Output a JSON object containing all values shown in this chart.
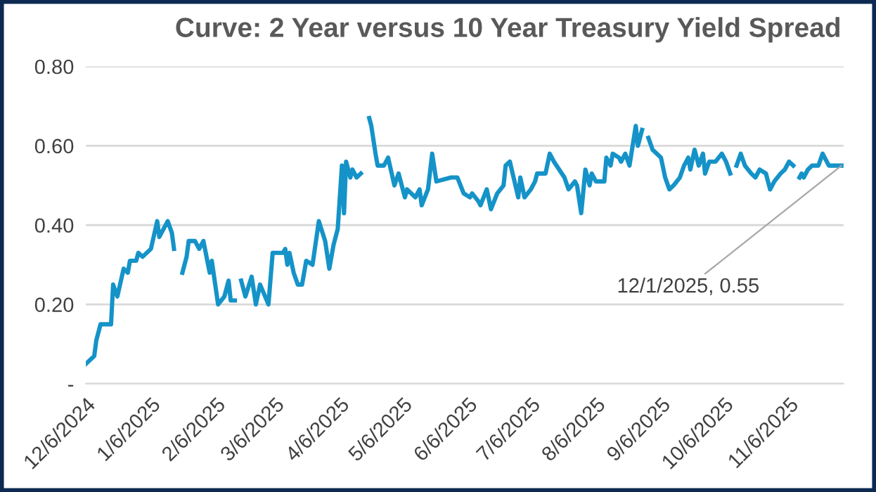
{
  "chart_data": {
    "type": "line",
    "title": "Curve: 2 Year versus 10 Year Treasury Yield Spread",
    "x": [
      "2024-12-06",
      "2024-12-10",
      "2024-12-11",
      "2024-12-13",
      "2024-12-17",
      "2024-12-18",
      "2024-12-19",
      "2024-12-21",
      "2024-12-24",
      "2024-12-26",
      "2024-12-27",
      "2024-12-30",
      "2024-12-31",
      "2025-01-02",
      "2025-01-06",
      "2025-01-09",
      "2025-01-10",
      "2025-01-14",
      "2025-01-16",
      "2025-01-17",
      "2025-01-19",
      "2025-01-21",
      "2025-01-23",
      "2025-01-24",
      "2025-01-27",
      "2025-01-29",
      "2025-01-31",
      "2025-02-03",
      "2025-02-04",
      "2025-02-07",
      "2025-02-10",
      "2025-02-12",
      "2025-02-13",
      "2025-02-15",
      "2025-02-17",
      "2025-02-18",
      "2025-02-20",
      "2025-02-23",
      "2025-02-25",
      "2025-02-27",
      "2025-03-03",
      "2025-03-05",
      "2025-03-10",
      "2025-03-11",
      "2025-03-12",
      "2025-03-13",
      "2025-03-15",
      "2025-03-17",
      "2025-03-19",
      "2025-03-21",
      "2025-03-24",
      "2025-03-27",
      "2025-03-30",
      "2025-04-01",
      "2025-04-03",
      "2025-04-05",
      "2025-04-07",
      "2025-04-08",
      "2025-04-09",
      "2025-04-11",
      "2025-04-12",
      "2025-04-14",
      "2025-04-16",
      "2025-04-19",
      "2025-04-20",
      "2025-04-21",
      "2025-04-23",
      "2025-04-24",
      "2025-04-27",
      "2025-04-29",
      "2025-05-02",
      "2025-05-04",
      "2025-05-07",
      "2025-05-08",
      "2025-05-12",
      "2025-05-14",
      "2025-05-15",
      "2025-05-18",
      "2025-05-20",
      "2025-05-22",
      "2025-05-29",
      "2025-06-01",
      "2025-06-04",
      "2025-06-07",
      "2025-06-08",
      "2025-06-11",
      "2025-06-12",
      "2025-06-15",
      "2025-06-17",
      "2025-06-20",
      "2025-06-23",
      "2025-06-24",
      "2025-06-26",
      "2025-06-30",
      "2025-07-01",
      "2025-07-03",
      "2025-07-06",
      "2025-07-08",
      "2025-07-09",
      "2025-07-13",
      "2025-07-15",
      "2025-07-17",
      "2025-07-22",
      "2025-07-24",
      "2025-07-27",
      "2025-07-28",
      "2025-07-30",
      "2025-08-01",
      "2025-08-03",
      "2025-08-04",
      "2025-08-06",
      "2025-08-10",
      "2025-08-11",
      "2025-08-13",
      "2025-08-14",
      "2025-08-17",
      "2025-08-18",
      "2025-08-20",
      "2025-08-22",
      "2025-08-25",
      "2025-08-26",
      "2025-08-28",
      "2025-08-30",
      "2025-08-31",
      "2025-09-02",
      "2025-09-06",
      "2025-09-08",
      "2025-09-10",
      "2025-09-12",
      "2025-09-15",
      "2025-09-17",
      "2025-09-19",
      "2025-09-20",
      "2025-09-22",
      "2025-09-24",
      "2025-09-26",
      "2025-09-27",
      "2025-09-29",
      "2025-10-02",
      "2025-10-05",
      "2025-10-07",
      "2025-10-09",
      "2025-10-11",
      "2025-10-12",
      "2025-10-14",
      "2025-10-16",
      "2025-10-19",
      "2025-10-21",
      "2025-10-23",
      "2025-10-26",
      "2025-10-28",
      "2025-10-30",
      "2025-11-02",
      "2025-11-04",
      "2025-11-06",
      "2025-11-08",
      "2025-11-10",
      "2025-11-11",
      "2025-11-12",
      "2025-11-13",
      "2025-11-15",
      "2025-11-17",
      "2025-11-20",
      "2025-11-22",
      "2025-11-25",
      "2025-12-01"
    ],
    "series": [
      {
        "color": "#1593c8",
        "values": [
          0.05,
          0.07,
          0.11,
          0.15,
          0.15,
          0.15,
          0.25,
          0.22,
          0.29,
          0.28,
          0.31,
          0.31,
          0.33,
          0.32,
          0.34,
          0.41,
          0.37,
          0.41,
          0.38,
          0.34,
          null,
          0.28,
          0.32,
          0.36,
          0.36,
          0.34,
          0.36,
          0.28,
          0.31,
          0.2,
          0.22,
          0.26,
          0.21,
          0.21,
          null,
          0.26,
          0.22,
          0.27,
          0.2,
          0.25,
          0.2,
          0.33,
          0.33,
          0.34,
          0.3,
          0.33,
          0.28,
          0.25,
          0.25,
          0.31,
          0.3,
          0.41,
          0.36,
          0.29,
          0.35,
          0.39,
          0.55,
          0.43,
          0.56,
          0.52,
          0.54,
          0.52,
          0.53,
          null,
          0.67,
          0.65,
          0.58,
          0.55,
          0.55,
          0.57,
          0.5,
          0.53,
          0.47,
          0.49,
          0.47,
          0.49,
          0.45,
          0.49,
          0.58,
          0.51,
          0.52,
          0.52,
          0.48,
          0.47,
          0.48,
          0.46,
          0.45,
          0.49,
          0.44,
          0.48,
          0.5,
          0.55,
          0.56,
          0.47,
          0.52,
          0.47,
          0.49,
          0.51,
          0.53,
          0.53,
          0.58,
          0.56,
          0.52,
          0.49,
          0.51,
          0.5,
          0.43,
          0.54,
          0.5,
          0.53,
          0.51,
          0.51,
          0.57,
          0.55,
          0.58,
          0.57,
          0.56,
          0.58,
          0.55,
          0.65,
          0.6,
          0.64,
          null,
          0.62,
          0.59,
          0.57,
          0.52,
          0.49,
          0.5,
          0.52,
          0.55,
          0.57,
          0.54,
          0.59,
          0.55,
          0.58,
          0.53,
          0.56,
          0.56,
          0.58,
          0.56,
          0.53,
          null,
          0.55,
          0.58,
          0.55,
          0.53,
          0.52,
          0.54,
          0.53,
          0.49,
          0.51,
          0.53,
          0.54,
          0.56,
          0.55,
          null,
          0.52,
          0.53,
          0.52,
          0.54,
          0.55,
          0.55,
          0.58,
          0.55,
          0.55
        ]
      }
    ],
    "xlim": [
      "2024-12-06",
      "2025-12-02"
    ],
    "xticks": [
      {
        "value": "2024-12-06",
        "label": "12/6/2024"
      },
      {
        "value": "2025-01-06",
        "label": "1/6/2025"
      },
      {
        "value": "2025-02-06",
        "label": "2/6/2025"
      },
      {
        "value": "2025-03-06",
        "label": "3/6/2025"
      },
      {
        "value": "2025-04-06",
        "label": "4/6/2025"
      },
      {
        "value": "2025-05-06",
        "label": "5/6/2025"
      },
      {
        "value": "2025-06-06",
        "label": "6/6/2025"
      },
      {
        "value": "2025-07-06",
        "label": "7/6/2025"
      },
      {
        "value": "2025-08-06",
        "label": "8/6/2025"
      },
      {
        "value": "2025-09-06",
        "label": "9/6/2025"
      },
      {
        "value": "2025-10-06",
        "label": "10/6/2025"
      },
      {
        "value": "2025-11-06",
        "label": "11/6/2025"
      }
    ],
    "ylim": [
      0,
      0.8
    ],
    "yticks": [
      {
        "value": 0,
        "label": "-"
      },
      {
        "value": 0.2,
        "label": "0.20"
      },
      {
        "value": 0.4,
        "label": "0.40"
      },
      {
        "value": 0.6,
        "label": "0.60"
      },
      {
        "value": 0.8,
        "label": "0.80"
      }
    ],
    "grid": "y",
    "legend": false,
    "marker": "none",
    "line_style": "solid",
    "annotations": [
      {
        "text": "12/1/2025, 0.55",
        "x": "2025-12-01",
        "y": 0.55
      }
    ]
  }
}
